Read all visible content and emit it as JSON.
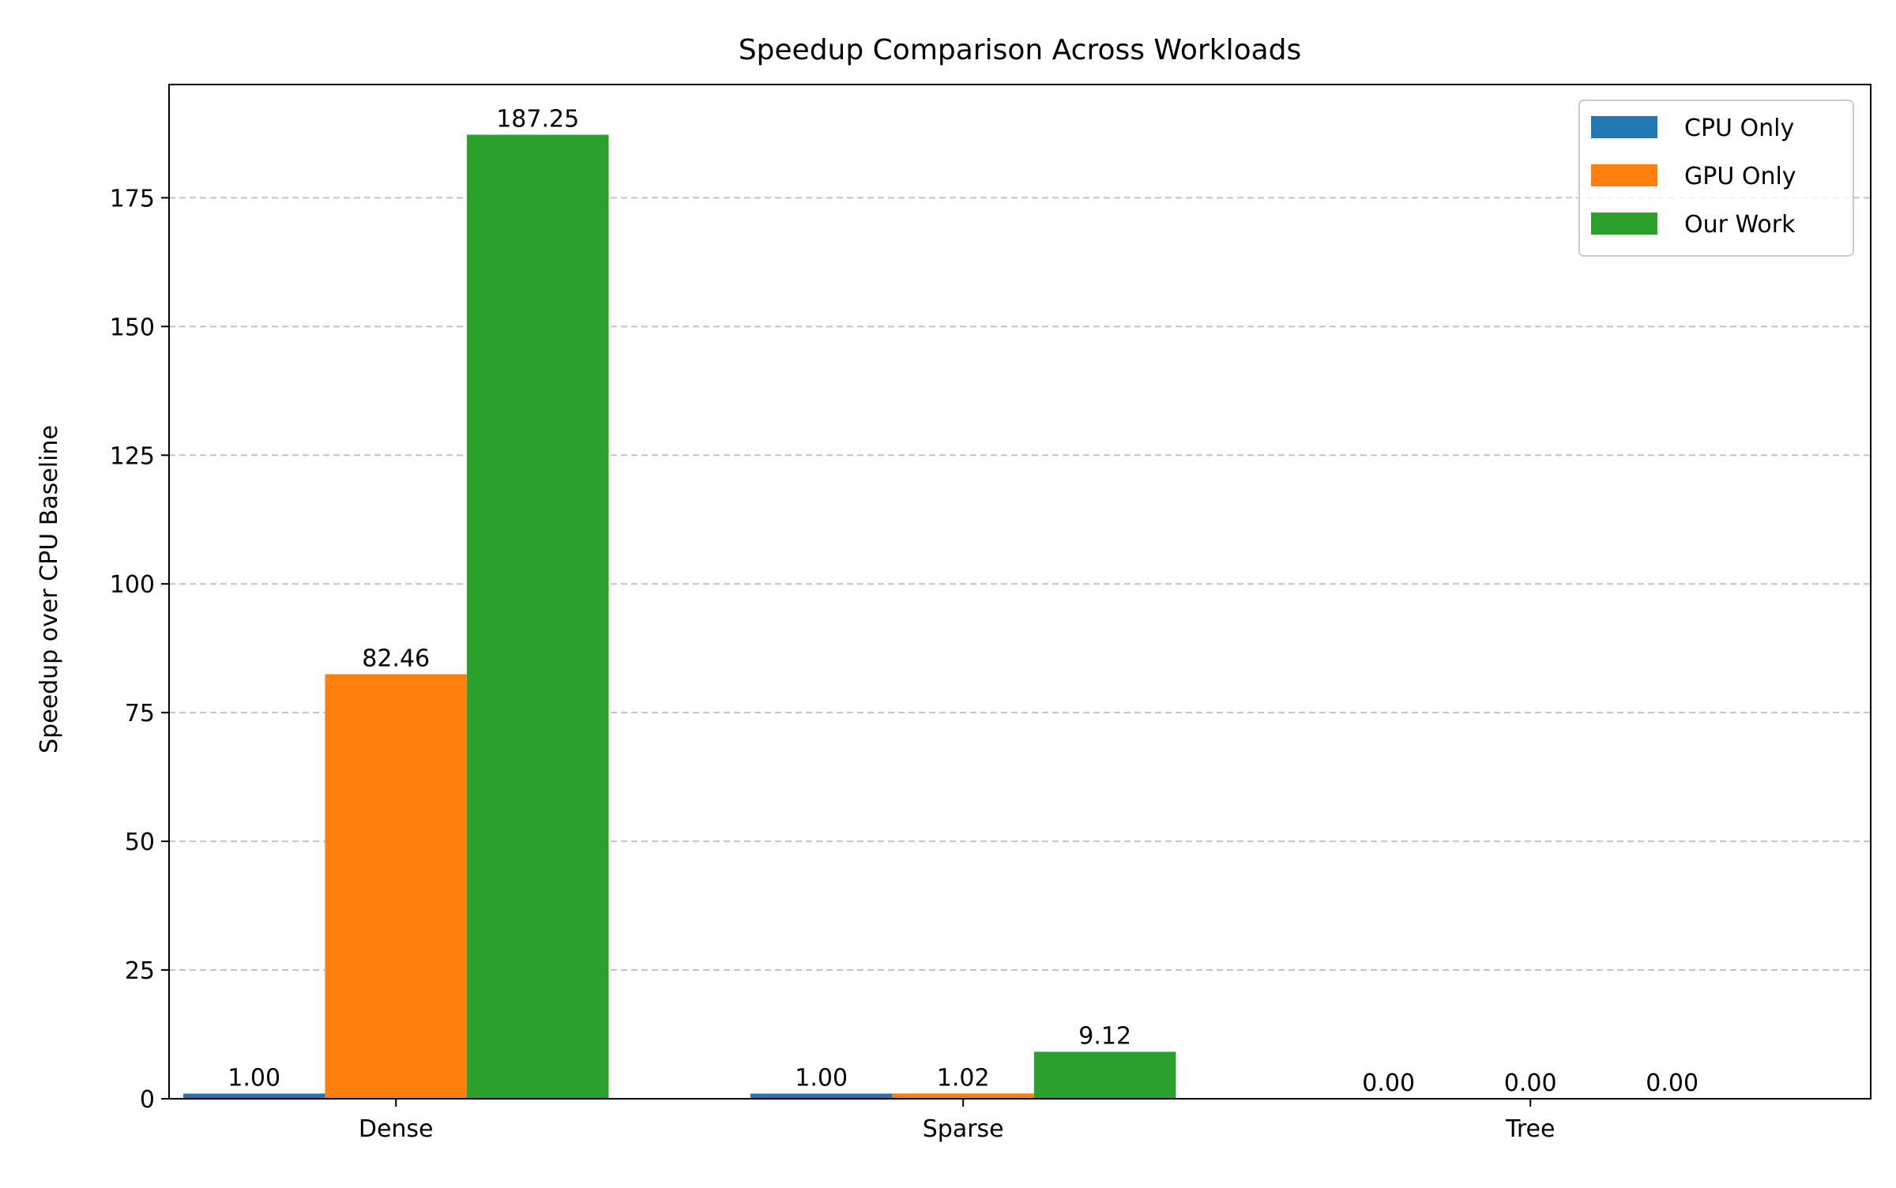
{
  "chart_data": {
    "type": "bar",
    "title": "Speedup Comparison Across Workloads",
    "xlabel": "",
    "ylabel": "Speedup over CPU Baseline",
    "categories": [
      "Dense",
      "Sparse",
      "Tree"
    ],
    "series": [
      {
        "name": "CPU Only",
        "color": "#1f77b4",
        "values": [
          1.0,
          1.0,
          0.0
        ],
        "labels": [
          "1.00",
          "1.00",
          "0.00"
        ]
      },
      {
        "name": "GPU Only",
        "color": "#ff7f0e",
        "values": [
          82.46,
          1.02,
          0.0
        ],
        "labels": [
          "82.46",
          "1.02",
          "0.00"
        ]
      },
      {
        "name": "Our Work",
        "color": "#2ca02c",
        "values": [
          187.25,
          9.12,
          0.0
        ],
        "labels": [
          "187.25",
          "9.12",
          "0.00"
        ]
      }
    ],
    "ylim": [
      0,
      197
    ],
    "yticks": [
      0,
      25,
      50,
      75,
      100,
      125,
      150,
      175
    ],
    "ytick_labels": [
      "0",
      "25",
      "50",
      "75",
      "100",
      "125",
      "150",
      "175"
    ],
    "grid": "y, dashed",
    "legend_position": "top-right"
  }
}
